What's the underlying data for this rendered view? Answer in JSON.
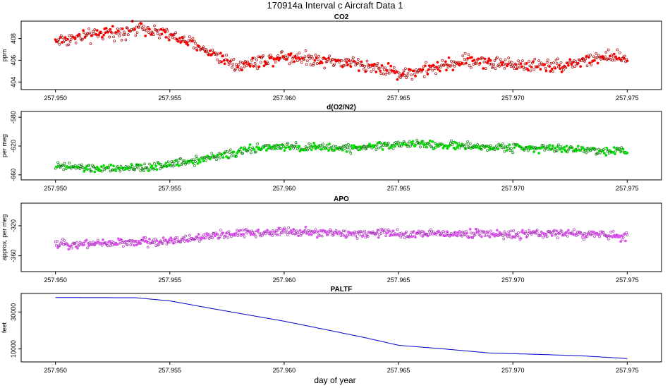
{
  "title": "170914a   Interval c Aircraft Data 1",
  "xlabel": "day of year",
  "chart_data": [
    {
      "type": "scatter",
      "title": "CO2",
      "ylabel": "ppm",
      "color": "#ff0000",
      "xlim": [
        257.9485,
        257.9765
      ],
      "ylim": [
        403.3,
        409.6
      ],
      "xticks": [
        "257.950",
        "257.955",
        "257.960",
        "257.965",
        "257.970",
        "257.975"
      ],
      "yticks": [
        "404",
        "406",
        "408"
      ],
      "x": [
        257.95,
        257.952,
        257.954,
        257.956,
        257.958,
        257.96,
        257.962,
        257.964,
        257.965,
        257.966,
        257.968,
        257.97,
        257.972,
        257.974,
        257.975
      ],
      "y": [
        407.8,
        408.4,
        409.0,
        407.5,
        405.5,
        406.4,
        406.0,
        405.4,
        404.8,
        405.0,
        406.0,
        405.6,
        405.5,
        406.3,
        406.1
      ],
      "noise": 0.55
    },
    {
      "type": "scatter",
      "title": "d(O2/N2)",
      "ylabel": "per meg",
      "color": "#00e000",
      "xlim": [
        257.9485,
        257.9765
      ],
      "ylim": [
        -667,
        -572
      ],
      "xticks": [
        "257.950",
        "257.955",
        "257.960",
        "257.965",
        "257.970",
        "257.975"
      ],
      "yticks": [
        "-660",
        "-620",
        "-580"
      ],
      "x": [
        257.95,
        257.952,
        257.954,
        257.955,
        257.957,
        257.959,
        257.961,
        257.963,
        257.965,
        257.967,
        257.969,
        257.971,
        257.973,
        257.975
      ],
      "y": [
        -648,
        -652,
        -650,
        -645,
        -635,
        -622,
        -622,
        -623,
        -617,
        -619,
        -622,
        -622,
        -625,
        -627
      ],
      "noise": 5
    },
    {
      "type": "scatter",
      "title": "APO",
      "ylabel": "approx. per meg",
      "color": "#dd55ee",
      "xlim": [
        257.9485,
        257.9765
      ],
      "ylim": [
        -381,
        -290
      ],
      "xticks": [
        "257.950",
        "257.955",
        "257.960",
        "257.965",
        "257.970",
        "257.975"
      ],
      "yticks": [
        "-360",
        "-320"
      ],
      "x": [
        257.95,
        257.952,
        257.954,
        257.956,
        257.958,
        257.96,
        257.962,
        257.964,
        257.966,
        257.968,
        257.97,
        257.972,
        257.974,
        257.975
      ],
      "y": [
        -345,
        -343,
        -342,
        -337,
        -330,
        -328,
        -330,
        -330,
        -331,
        -330,
        -332,
        -330,
        -332,
        -334
      ],
      "noise": 5
    },
    {
      "type": "line",
      "title": "PALTF",
      "ylabel": "feet",
      "color": "#0000cc",
      "xlim": [
        257.9485,
        257.9765
      ],
      "ylim": [
        3000,
        40000
      ],
      "xticks": [
        "257.950",
        "257.955",
        "257.960",
        "257.965",
        "257.970",
        "257.975"
      ],
      "yticks": [
        "10000",
        "30000"
      ],
      "x": [
        257.95,
        257.9535,
        257.955,
        257.957,
        257.96,
        257.962,
        257.9635,
        257.965,
        257.967,
        257.969,
        257.971,
        257.973,
        257.975
      ],
      "y": [
        37800,
        37700,
        36000,
        31500,
        25000,
        20000,
        16200,
        12000,
        10000,
        7800,
        7100,
        6300,
        4800
      ]
    }
  ]
}
